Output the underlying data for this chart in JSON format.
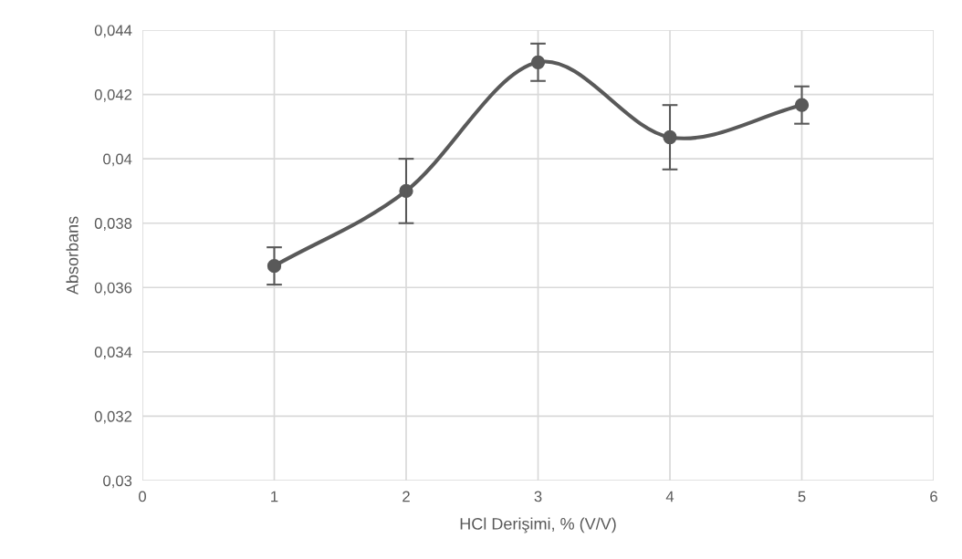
{
  "chart_data": {
    "type": "line",
    "xlabel": "HCl Derişimi, % (V/V)",
    "ylabel": "Absorbans",
    "x": [
      1,
      2,
      3,
      4,
      5
    ],
    "series": [
      {
        "color": "#595959",
        "values": [
          0.03667,
          0.039,
          0.043,
          0.04067,
          0.04167
        ],
        "errors": [
          0.00058,
          0.001,
          0.00058,
          0.001,
          0.00058
        ]
      }
    ],
    "xlim": [
      0,
      6
    ],
    "xticks": [
      0,
      1,
      2,
      3,
      4,
      5,
      6
    ],
    "ylim": [
      0.03,
      0.044
    ],
    "yticks": [
      {
        "value": 0.03,
        "label": "0,03"
      },
      {
        "value": 0.032,
        "label": "0,032"
      },
      {
        "value": 0.034,
        "label": "0,034"
      },
      {
        "value": 0.036,
        "label": "0,036"
      },
      {
        "value": 0.038,
        "label": "0,038"
      },
      {
        "value": 0.04,
        "label": "0,04"
      },
      {
        "value": 0.042,
        "label": "0,042"
      },
      {
        "value": 0.044,
        "label": "0,044"
      }
    ],
    "grid": true,
    "marker": "circle",
    "line_style": "solid",
    "legend": false
  }
}
